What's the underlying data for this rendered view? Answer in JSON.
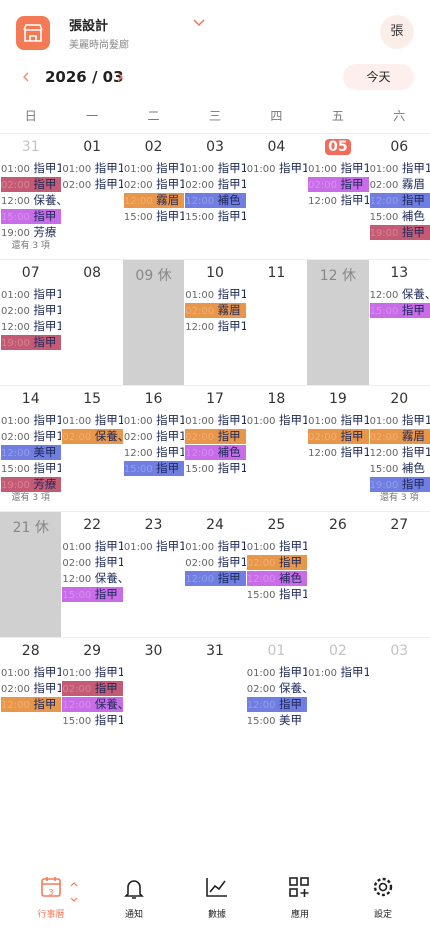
{
  "header": {
    "shop_name": "張設計",
    "shop_subtitle": "美麗時尚髮廊",
    "avatar": "張"
  },
  "toolbar": {
    "month": "2026 / 03",
    "today_button": "今天"
  },
  "calendar": {
    "weekdays": [
      "日",
      "一",
      "二",
      "三",
      "四",
      "五",
      "六"
    ],
    "weeks": [
      {
        "days": [
          {
            "date": "31",
            "muted": true,
            "events": [
              {
                "time": "01:00",
                "title": "指甲1"
              },
              {
                "time": "02:00",
                "title": "指甲",
                "color": "#c45a74"
              },
              {
                "time": "12:00",
                "title": "保養、"
              },
              {
                "time": "15:00",
                "title": "指甲",
                "color": "#c86ce8"
              },
              {
                "time": "19:00",
                "title": "芳療"
              }
            ],
            "more": "還有 3 項"
          },
          {
            "date": "01",
            "events": [
              {
                "time": "01:00",
                "title": "指甲1"
              },
              {
                "time": "02:00",
                "title": "指甲1"
              }
            ]
          },
          {
            "date": "02",
            "events": [
              {
                "time": "01:00",
                "title": "指甲1"
              },
              {
                "time": "02:00",
                "title": "指甲1"
              },
              {
                "time": "12:00",
                "title": "霧眉",
                "color": "#e8964a"
              },
              {
                "time": "15:00",
                "title": "指甲1"
              }
            ]
          },
          {
            "date": "03",
            "events": [
              {
                "time": "01:00",
                "title": "指甲1"
              },
              {
                "time": "02:00",
                "title": "指甲1"
              },
              {
                "time": "12:00",
                "title": "補色",
                "color": "#6f7ee0"
              },
              {
                "time": "15:00",
                "title": "指甲1"
              }
            ]
          },
          {
            "date": "04",
            "events": [
              {
                "time": "01:00",
                "title": "指甲1"
              }
            ]
          },
          {
            "date": "05",
            "today": true,
            "events": [
              {
                "time": "01:00",
                "title": "指甲1"
              },
              {
                "time": "02:00",
                "title": "指甲",
                "color": "#c86ce8"
              },
              {
                "time": "12:00",
                "title": "指甲1"
              }
            ]
          },
          {
            "date": "06",
            "events": [
              {
                "time": "01:00",
                "title": "指甲1"
              },
              {
                "time": "02:00",
                "title": "霧眉"
              },
              {
                "time": "12:00",
                "title": "指甲",
                "color": "#6f7ee0"
              },
              {
                "time": "15:00",
                "title": "補色"
              },
              {
                "time": "19:00",
                "title": "指甲",
                "color": "#c45a74"
              }
            ]
          }
        ]
      },
      {
        "days": [
          {
            "date": "07",
            "events": [
              {
                "time": "01:00",
                "title": "指甲1"
              },
              {
                "time": "02:00",
                "title": "指甲1"
              },
              {
                "time": "12:00",
                "title": "指甲1"
              },
              {
                "time": "19:00",
                "title": "指甲",
                "color": "#c45a74"
              }
            ]
          },
          {
            "date": "08",
            "events": []
          },
          {
            "date": "09 休",
            "off": true,
            "events": []
          },
          {
            "date": "10",
            "events": [
              {
                "time": "01:00",
                "title": "指甲1"
              },
              {
                "time": "02:00",
                "title": "霧眉",
                "color": "#e8964a"
              },
              {
                "time": "12:00",
                "title": "指甲1"
              }
            ]
          },
          {
            "date": "11",
            "events": []
          },
          {
            "date": "12 休",
            "off": true,
            "events": []
          },
          {
            "date": "13",
            "events": [
              {
                "time": "12:00",
                "title": "保養、"
              },
              {
                "time": "15:00",
                "title": "指甲",
                "color": "#c86ce8"
              }
            ]
          }
        ]
      },
      {
        "days": [
          {
            "date": "14",
            "events": [
              {
                "time": "01:00",
                "title": "指甲1"
              },
              {
                "time": "02:00",
                "title": "指甲1"
              },
              {
                "time": "12:00",
                "title": "美甲",
                "color": "#6f7ee0"
              },
              {
                "time": "15:00",
                "title": "指甲1"
              },
              {
                "time": "19:00",
                "title": "芳療",
                "color": "#c45a74"
              }
            ],
            "more": "還有 3 項"
          },
          {
            "date": "15",
            "events": [
              {
                "time": "01:00",
                "title": "指甲1"
              },
              {
                "time": "02:00",
                "title": "保養、",
                "color": "#e8964a"
              }
            ]
          },
          {
            "date": "16",
            "events": [
              {
                "time": "01:00",
                "title": "指甲1"
              },
              {
                "time": "02:00",
                "title": "指甲1"
              },
              {
                "time": "12:00",
                "title": "指甲1"
              },
              {
                "time": "15:00",
                "title": "指甲",
                "color": "#6f7ee0"
              }
            ]
          },
          {
            "date": "17",
            "events": [
              {
                "time": "01:00",
                "title": "指甲1"
              },
              {
                "time": "02:00",
                "title": "指甲",
                "color": "#e8964a"
              },
              {
                "time": "12:00",
                "title": "補色",
                "color": "#c86ce8"
              },
              {
                "time": "15:00",
                "title": "指甲1"
              }
            ]
          },
          {
            "date": "18",
            "events": [
              {
                "time": "01:00",
                "title": "指甲1"
              }
            ]
          },
          {
            "date": "19",
            "events": [
              {
                "time": "01:00",
                "title": "指甲1"
              },
              {
                "time": "02:00",
                "title": "指甲",
                "color": "#e8964a"
              },
              {
                "time": "12:00",
                "title": "指甲1"
              }
            ]
          },
          {
            "date": "20",
            "events": [
              {
                "time": "01:00",
                "title": "指甲1"
              },
              {
                "time": "02:00",
                "title": "霧眉",
                "color": "#e8964a"
              },
              {
                "time": "12:00",
                "title": "指甲1"
              },
              {
                "time": "15:00",
                "title": "補色"
              },
              {
                "time": "19:00",
                "title": "指甲",
                "color": "#6f7ee0"
              }
            ],
            "more": "還有 3 項"
          }
        ]
      },
      {
        "days": [
          {
            "date": "21 休",
            "off": true,
            "events": []
          },
          {
            "date": "22",
            "events": [
              {
                "time": "01:00",
                "title": "指甲1"
              },
              {
                "time": "02:00",
                "title": "指甲1"
              },
              {
                "time": "12:00",
                "title": "保養、"
              },
              {
                "time": "15:00",
                "title": "指甲",
                "color": "#c86ce8"
              }
            ]
          },
          {
            "date": "23",
            "events": [
              {
                "time": "01:00",
                "title": "指甲1"
              }
            ]
          },
          {
            "date": "24",
            "events": [
              {
                "time": "01:00",
                "title": "指甲1"
              },
              {
                "time": "02:00",
                "title": "指甲1"
              },
              {
                "time": "12:00",
                "title": "指甲",
                "color": "#6f7ee0"
              }
            ]
          },
          {
            "date": "25",
            "events": [
              {
                "time": "01:00",
                "title": "指甲1"
              },
              {
                "time": "02:00",
                "title": "指甲",
                "color": "#e8964a"
              },
              {
                "time": "12:00",
                "title": "補色",
                "color": "#c86ce8"
              },
              {
                "time": "15:00",
                "title": "指甲1"
              }
            ]
          },
          {
            "date": "26",
            "events": []
          },
          {
            "date": "27",
            "events": []
          }
        ]
      },
      {
        "days": [
          {
            "date": "28",
            "events": [
              {
                "time": "01:00",
                "title": "指甲1"
              },
              {
                "time": "02:00",
                "title": "指甲1"
              },
              {
                "time": "12:00",
                "title": "指甲",
                "color": "#e8964a"
              }
            ]
          },
          {
            "date": "29",
            "events": [
              {
                "time": "01:00",
                "title": "指甲1"
              },
              {
                "time": "02:00",
                "title": "指甲",
                "color": "#c45a74"
              },
              {
                "time": "12:00",
                "title": "保養、",
                "color": "#c86ce8"
              },
              {
                "time": "15:00",
                "title": "指甲1"
              }
            ]
          },
          {
            "date": "30",
            "events": []
          },
          {
            "date": "31",
            "events": []
          },
          {
            "date": "01",
            "muted": true,
            "events": [
              {
                "time": "01:00",
                "title": "指甲1"
              },
              {
                "time": "02:00",
                "title": "保養、"
              },
              {
                "time": "12:00",
                "title": "指甲",
                "color": "#6f7ee0"
              },
              {
                "time": "15:00",
                "title": "美甲"
              }
            ]
          },
          {
            "date": "02",
            "muted": true,
            "events": [
              {
                "time": "01:00",
                "title": "指甲1"
              }
            ]
          },
          {
            "date": "03",
            "muted": true,
            "events": []
          }
        ]
      }
    ]
  },
  "nav": {
    "calendar_badge": "3",
    "items": [
      "行事曆",
      "通知",
      "數據",
      "應用",
      "設定"
    ]
  }
}
